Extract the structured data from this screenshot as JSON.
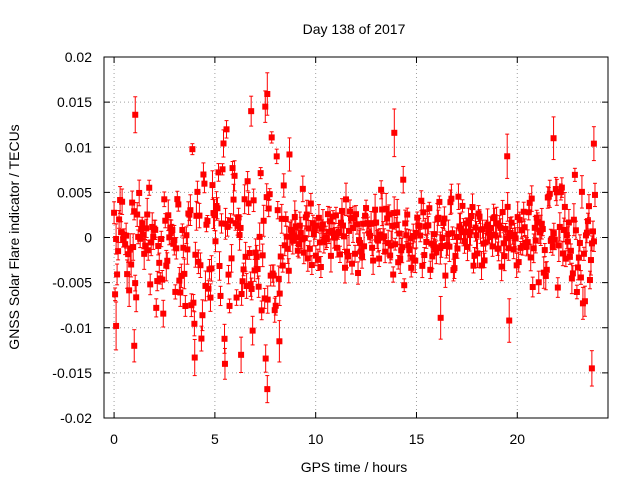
{
  "chart_data": {
    "type": "scatter",
    "title": "Day 138 of 2017",
    "xlabel": "GPS time / hours",
    "ylabel": "GNSS Solar Flare indicator / TECUs",
    "xlim": [
      -0.5,
      24.5
    ],
    "ylim": [
      -0.02,
      0.02
    ],
    "x_ticks": [
      "0",
      "5",
      "10",
      "15",
      "20"
    ],
    "y_ticks": [
      "0.02",
      "0.015",
      "0.01",
      "0.005",
      "0",
      "-0.005",
      "-0.01",
      "-0.015",
      "-0.02"
    ],
    "x_tick_values": [
      0,
      5,
      10,
      15,
      20
    ],
    "y_tick_values": [
      0.02,
      0.015,
      0.01,
      0.005,
      0,
      -0.005,
      -0.01,
      -0.015,
      -0.02
    ],
    "grid": true,
    "series": [
      {
        "color": "#ff0000",
        "marker": "square",
        "error_bars": true,
        "x_range": [
          0,
          23.9
        ],
        "sample_interval_hours": 0.0083,
        "envelope": [
          {
            "x": 0,
            "low": -0.01,
            "high": 0.01
          },
          {
            "x": 2,
            "low": -0.011,
            "high": 0.011
          },
          {
            "x": 4,
            "low": -0.013,
            "high": 0.012
          },
          {
            "x": 6,
            "low": -0.014,
            "high": 0.014
          },
          {
            "x": 7.5,
            "low": -0.017,
            "high": 0.016
          },
          {
            "x": 8.5,
            "low": -0.009,
            "high": 0.009
          },
          {
            "x": 10,
            "low": -0.005,
            "high": 0.005
          },
          {
            "x": 12,
            "low": -0.005,
            "high": 0.005
          },
          {
            "x": 14,
            "low": -0.008,
            "high": 0.01
          },
          {
            "x": 16,
            "low": -0.007,
            "high": 0.008
          },
          {
            "x": 18,
            "low": -0.007,
            "high": 0.007
          },
          {
            "x": 20,
            "low": -0.006,
            "high": 0.006
          },
          {
            "x": 22,
            "low": -0.008,
            "high": 0.009
          },
          {
            "x": 23.9,
            "low": -0.014,
            "high": 0.01
          }
        ]
      }
    ],
    "notable_points": [
      {
        "x": 7.6,
        "y": 0.0159
      },
      {
        "x": 7.5,
        "y": 0.0145
      },
      {
        "x": 6.8,
        "y": 0.014
      },
      {
        "x": 1.05,
        "y": 0.0136
      },
      {
        "x": 13.9,
        "y": 0.0116
      },
      {
        "x": 21.8,
        "y": 0.011
      },
      {
        "x": 23.8,
        "y": 0.0104
      },
      {
        "x": 19.5,
        "y": 0.009
      },
      {
        "x": 8.7,
        "y": 0.0092
      },
      {
        "x": 7.6,
        "y": -0.0168
      },
      {
        "x": 23.7,
        "y": -0.0145
      },
      {
        "x": 5.5,
        "y": -0.014
      },
      {
        "x": 4.0,
        "y": -0.0133
      },
      {
        "x": 6.3,
        "y": -0.013
      },
      {
        "x": 1.0,
        "y": -0.012
      },
      {
        "x": 8.2,
        "y": -0.0115
      },
      {
        "x": 0.1,
        "y": -0.0098
      },
      {
        "x": 19.6,
        "y": -0.0092
      },
      {
        "x": 16.2,
        "y": -0.0089
      }
    ]
  }
}
